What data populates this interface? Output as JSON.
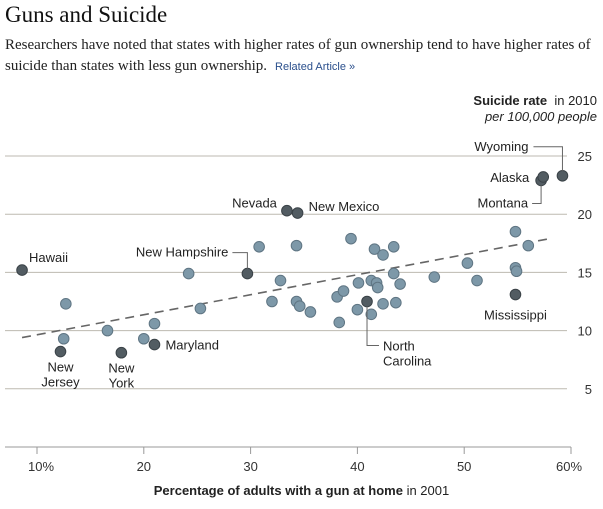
{
  "header": {
    "title": "Guns and Suicide",
    "subtitle": "Researchers have noted that states with higher rates of gun ownership tend to have higher rates of suicide than states with less gun ownership.",
    "related_link": "Related Article »"
  },
  "chart_data": {
    "type": "scatter",
    "title": "Guns and Suicide",
    "ylabel_bold": "Suicide rate",
    "ylabel_suffix": "in 2010",
    "ylabel_unit": "per 100,000 people",
    "xlabel_bold": "Percentage of adults with a gun at home",
    "xlabel_suffix": "in 2001",
    "xlim": [
      8,
      60
    ],
    "ylim": [
      0,
      26
    ],
    "xticks": [
      10,
      20,
      30,
      40,
      50,
      60
    ],
    "xtick_labels": [
      "10%",
      "20",
      "30",
      "40",
      "50",
      "60%"
    ],
    "yticks": [
      5,
      10,
      15,
      20,
      25
    ],
    "ytick_labels": [
      "5",
      "10",
      "15",
      "20",
      "25"
    ],
    "grid": true,
    "colors": {
      "point": "#7d98a8",
      "highlight": "#525c62",
      "trend": "#666666",
      "grid": "#bdbab0"
    },
    "trendline": {
      "style": "dashed",
      "x": [
        8.6,
        58.0
      ],
      "y": [
        9.4,
        17.9
      ]
    },
    "points": [
      {
        "x": 8.6,
        "y": 15.2,
        "label": "Hawaii",
        "highlight": true
      },
      {
        "x": 12.7,
        "y": 12.3
      },
      {
        "x": 12.5,
        "y": 9.3
      },
      {
        "x": 12.2,
        "y": 8.2,
        "label": "New Jersey",
        "highlight": true
      },
      {
        "x": 16.6,
        "y": 10.0
      },
      {
        "x": 17.9,
        "y": 8.1,
        "label": "New York",
        "highlight": true
      },
      {
        "x": 20.0,
        "y": 9.3
      },
      {
        "x": 21.0,
        "y": 10.6
      },
      {
        "x": 21.0,
        "y": 8.8,
        "label": "Maryland",
        "highlight": true
      },
      {
        "x": 24.2,
        "y": 14.9
      },
      {
        "x": 25.3,
        "y": 11.9
      },
      {
        "x": 29.7,
        "y": 14.9,
        "label": "New Hampshire",
        "highlight": true
      },
      {
        "x": 30.8,
        "y": 17.2
      },
      {
        "x": 32.0,
        "y": 12.5
      },
      {
        "x": 32.8,
        "y": 14.3
      },
      {
        "x": 33.4,
        "y": 20.3,
        "label": "Nevada",
        "highlight": true
      },
      {
        "x": 34.3,
        "y": 17.3
      },
      {
        "x": 34.3,
        "y": 12.5
      },
      {
        "x": 34.6,
        "y": 12.1
      },
      {
        "x": 34.4,
        "y": 20.1,
        "label": "New Mexico",
        "highlight": true
      },
      {
        "x": 35.6,
        "y": 11.6
      },
      {
        "x": 38.1,
        "y": 12.9
      },
      {
        "x": 38.3,
        "y": 10.7
      },
      {
        "x": 38.7,
        "y": 13.4
      },
      {
        "x": 39.4,
        "y": 17.9
      },
      {
        "x": 40.0,
        "y": 11.8
      },
      {
        "x": 40.1,
        "y": 14.1
      },
      {
        "x": 41.3,
        "y": 14.3
      },
      {
        "x": 40.9,
        "y": 12.5,
        "label": "North Carolina",
        "highlight": true
      },
      {
        "x": 41.3,
        "y": 11.4
      },
      {
        "x": 41.6,
        "y": 17.0
      },
      {
        "x": 41.8,
        "y": 14.1
      },
      {
        "x": 41.9,
        "y": 13.7
      },
      {
        "x": 42.4,
        "y": 16.5
      },
      {
        "x": 42.4,
        "y": 12.3
      },
      {
        "x": 43.4,
        "y": 17.2
      },
      {
        "x": 43.4,
        "y": 14.9
      },
      {
        "x": 43.6,
        "y": 12.4
      },
      {
        "x": 44.0,
        "y": 14.0
      },
      {
        "x": 47.2,
        "y": 14.6
      },
      {
        "x": 50.3,
        "y": 15.8
      },
      {
        "x": 51.2,
        "y": 14.3
      },
      {
        "x": 54.8,
        "y": 18.5
      },
      {
        "x": 54.8,
        "y": 15.4
      },
      {
        "x": 54.9,
        "y": 15.1
      },
      {
        "x": 54.8,
        "y": 13.1,
        "label": "Mississippi",
        "highlight": true
      },
      {
        "x": 56.0,
        "y": 17.3
      },
      {
        "x": 57.2,
        "y": 22.9,
        "label": "Montana",
        "highlight": true
      },
      {
        "x": 57.4,
        "y": 23.2,
        "label": "Alaska",
        "highlight": true
      },
      {
        "x": 59.2,
        "y": 23.3,
        "label": "Wyoming",
        "highlight": true
      }
    ]
  }
}
